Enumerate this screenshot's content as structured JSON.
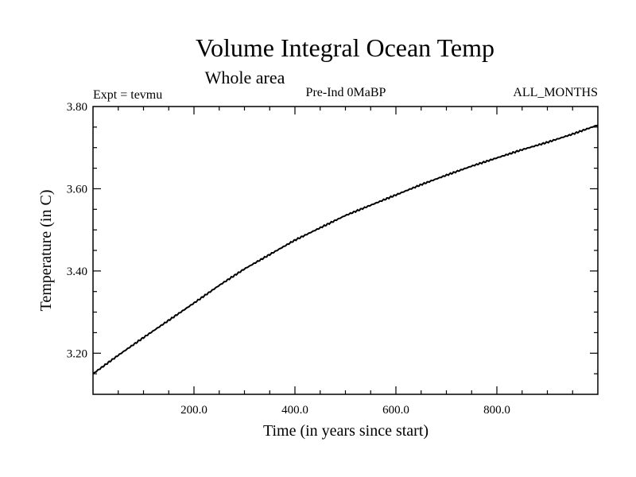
{
  "chart_data": {
    "type": "line",
    "title": "Volume Integral Ocean Temp",
    "subtitle": "Whole area",
    "experiment": "Expt = tevmu",
    "period": "Pre-Ind 0MaBP",
    "months": "ALL_MONTHS",
    "xlabel": "Time (in years since start)",
    "ylabel": "Temperature (in C)",
    "xlim": [
      0,
      1000
    ],
    "ylim": [
      3.1,
      3.8
    ],
    "xticks": [
      200,
      400,
      600,
      800
    ],
    "xtick_labels": [
      "200.0",
      "400.0",
      "600.0",
      "800.0"
    ],
    "yticks": [
      3.2,
      3.4,
      3.6,
      3.8
    ],
    "ytick_labels": [
      "3.20",
      "3.40",
      "3.60",
      "3.80"
    ],
    "series": [
      {
        "name": "Volume Integral Ocean Temp",
        "x": [
          0,
          50,
          100,
          150,
          200,
          250,
          300,
          350,
          400,
          450,
          500,
          550,
          600,
          650,
          700,
          750,
          800,
          850,
          900,
          950,
          1000
        ],
        "y": [
          3.15,
          3.195,
          3.238,
          3.28,
          3.322,
          3.365,
          3.405,
          3.44,
          3.475,
          3.505,
          3.535,
          3.56,
          3.585,
          3.61,
          3.633,
          3.655,
          3.675,
          3.695,
          3.713,
          3.733,
          3.755
        ]
      }
    ],
    "colors": {
      "line": "#000000",
      "axes": "#000000",
      "background": "#ffffff"
    }
  }
}
